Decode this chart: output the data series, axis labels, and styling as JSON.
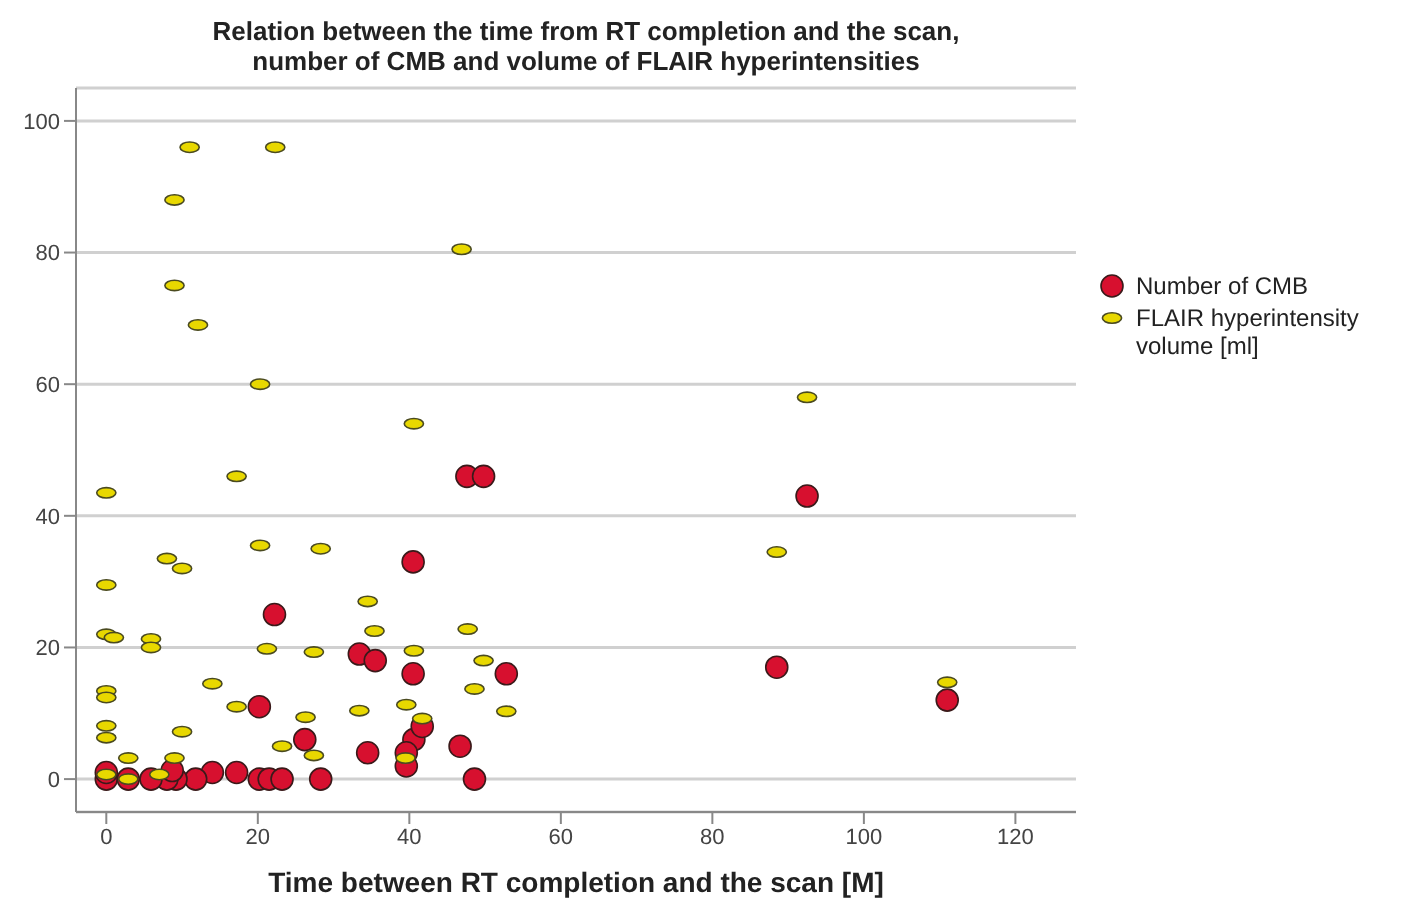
{
  "chart_data": {
    "type": "scatter",
    "title": "Relation between the time from RT completion and the scan,\nnumber of CMB and volume of FLAIR hyperintensities",
    "xlabel": "Time between RT completion and the scan [M]",
    "xlim": [
      -4,
      128
    ],
    "xticks": [
      0,
      20,
      40,
      60,
      80,
      100,
      120
    ],
    "ylim": [
      -5,
      105
    ],
    "yticks": [
      0,
      20,
      40,
      60,
      80,
      100
    ],
    "grid": "y",
    "legend": "right",
    "marker": "circle",
    "series": [
      {
        "name": "Number of CMB",
        "color": "#d7102f",
        "x": [
          47.6,
          49.8,
          40.5,
          22.2,
          33.4,
          35.5,
          40.5,
          52.8,
          20.2,
          26.2,
          40.6,
          41.7,
          39.6,
          39.6,
          34.5,
          46.7,
          48.6,
          28.3,
          20.2,
          21.5,
          23.2,
          17.2,
          14,
          11.8,
          9.2,
          8,
          8.7,
          5.9,
          0,
          0,
          2.9,
          92.5,
          88.5,
          111
        ],
        "values": [
          46,
          46,
          33,
          25,
          19,
          18,
          16,
          16,
          11,
          6,
          6,
          8,
          4,
          2,
          4,
          5,
          0,
          0,
          0,
          0,
          0,
          1,
          1,
          0,
          0,
          0,
          1.3,
          0,
          0,
          1,
          0,
          43,
          17,
          12
        ]
      },
      {
        "name": "FLAIR hyperintensity volume [ml]",
        "color": "#e8d800",
        "x": [
          11,
          22.3,
          9,
          46.9,
          9,
          12.1,
          20.3,
          40.6,
          17.2,
          0,
          20.3,
          28.3,
          8,
          10,
          0,
          34.5,
          35.4,
          47.7,
          0,
          1,
          5.9,
          5.9,
          21.2,
          27.4,
          40.6,
          49.8,
          14,
          48.6,
          0,
          0,
          17.2,
          33.4,
          39.6,
          52.8,
          26.3,
          41.7,
          0,
          0,
          10,
          23.2,
          27.4,
          39.5,
          2.9,
          9,
          0,
          2.9,
          7,
          92.5,
          88.5,
          111
        ],
        "values": [
          96,
          96,
          88,
          80.5,
          75,
          69,
          60,
          54,
          46,
          43.5,
          35.5,
          35,
          33.5,
          32,
          29.5,
          27,
          22.5,
          22.8,
          22,
          21.5,
          21.3,
          20,
          19.8,
          19.3,
          19.5,
          18,
          14.5,
          13.7,
          13.4,
          12.4,
          11,
          10.4,
          11.3,
          10.3,
          9.4,
          9.2,
          8.1,
          6.3,
          7.2,
          5,
          3.6,
          3.2,
          3.2,
          3.2,
          0.7,
          0,
          0.7,
          58,
          34.5,
          14.7
        ]
      }
    ]
  }
}
